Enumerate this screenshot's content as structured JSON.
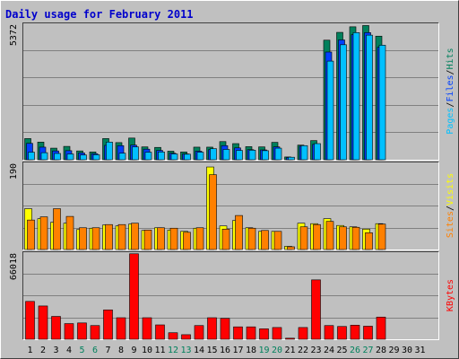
{
  "colors": {
    "background": "#C0C0C0",
    "plot_bg": "#C0C0C0",
    "grid": "#808080",
    "title": "#0000CC",
    "hits": "#00805C",
    "files": "#0040FF",
    "pages": "#00C0FF",
    "visits": "#FFFF00",
    "sites": "#FF8000",
    "kbytes": "#FF0000",
    "weekend_label": "#00805C",
    "weekday_label": "#000000"
  },
  "chart_data": [
    {
      "type": "bar",
      "title": "Daily usage for February 2011",
      "ymax_label": "5372",
      "ylim": [
        0,
        5372
      ],
      "legend_right": [
        {
          "text": "Pages",
          "color": "#00C0FF"
        },
        {
          "text": "/",
          "color": "#000000"
        },
        {
          "text": "Files",
          "color": "#0040FF"
        },
        {
          "text": "/",
          "color": "#000000"
        },
        {
          "text": "Hits",
          "color": "#00805C"
        }
      ],
      "categories": [
        "1",
        "2",
        "3",
        "4",
        "5",
        "6",
        "7",
        "8",
        "9",
        "10",
        "11",
        "12",
        "13",
        "14",
        "15",
        "16",
        "17",
        "18",
        "19",
        "20",
        "21",
        "22",
        "23",
        "24",
        "25",
        "26",
        "27",
        "28",
        "29",
        "30",
        "31"
      ],
      "series": [
        {
          "name": "Hits",
          "values": [
            840,
            700,
            460,
            530,
            350,
            310,
            840,
            680,
            860,
            510,
            490,
            340,
            310,
            500,
            500,
            720,
            640,
            520,
            510,
            690,
            110,
            580,
            760,
            4740,
            5050,
            5270,
            5320,
            4900,
            0,
            0,
            0
          ]
        },
        {
          "name": "Files",
          "values": [
            650,
            500,
            350,
            360,
            270,
            240,
            570,
            560,
            580,
            420,
            370,
            260,
            230,
            340,
            400,
            560,
            470,
            400,
            390,
            510,
            90,
            540,
            610,
            4270,
            4750,
            4960,
            5040,
            4460,
            0,
            0,
            0
          ]
        },
        {
          "name": "Pages",
          "values": [
            300,
            280,
            250,
            230,
            190,
            200,
            700,
            260,
            510,
            300,
            310,
            230,
            220,
            300,
            440,
            410,
            370,
            380,
            360,
            460,
            100,
            560,
            640,
            3910,
            4560,
            5040,
            4940,
            4540,
            0,
            0,
            0
          ]
        }
      ]
    },
    {
      "type": "bar",
      "ymax_label": "190",
      "ylim": [
        0,
        190
      ],
      "legend_right": [
        {
          "text": "Sites",
          "color": "#FF8000"
        },
        {
          "text": "/",
          "color": "#000000"
        },
        {
          "text": "Visits",
          "color": "#FFFF00"
        }
      ],
      "categories": [
        "1",
        "2",
        "3",
        "4",
        "5",
        "6",
        "7",
        "8",
        "9",
        "10",
        "11",
        "12",
        "13",
        "14",
        "15",
        "16",
        "17",
        "18",
        "19",
        "20",
        "21",
        "22",
        "23",
        "24",
        "25",
        "26",
        "27",
        "28",
        "29",
        "30",
        "31"
      ],
      "series": [
        {
          "name": "Visits",
          "values": [
            90,
            68,
            60,
            58,
            44,
            47,
            54,
            52,
            56,
            42,
            48,
            43,
            40,
            47,
            182,
            52,
            64,
            48,
            40,
            40,
            7,
            58,
            57,
            68,
            53,
            50,
            45,
            57,
            0,
            0,
            0
          ]
        },
        {
          "name": "Sites",
          "values": [
            65,
            72,
            90,
            73,
            48,
            48,
            55,
            55,
            58,
            43,
            48,
            47,
            38,
            48,
            165,
            45,
            75,
            47,
            42,
            40,
            6,
            50,
            55,
            62,
            50,
            49,
            37,
            56,
            0,
            0,
            0
          ]
        }
      ]
    },
    {
      "type": "bar",
      "ymax_label": "66018",
      "ylim": [
        0,
        66018
      ],
      "legend_right": [
        {
          "text": "KBytes",
          "color": "#FF0000"
        }
      ],
      "categories": [
        "1",
        "2",
        "3",
        "4",
        "5",
        "6",
        "7",
        "8",
        "9",
        "10",
        "11",
        "12",
        "13",
        "14",
        "15",
        "16",
        "17",
        "18",
        "19",
        "20",
        "21",
        "22",
        "23",
        "24",
        "25",
        "26",
        "27",
        "28",
        "29",
        "30",
        "31"
      ],
      "weekend_days": [
        5,
        6,
        12,
        13,
        19,
        20,
        26,
        27
      ],
      "series": [
        {
          "name": "KBytes",
          "values": [
            29000,
            25500,
            17500,
            12000,
            12500,
            10500,
            22500,
            16500,
            65500,
            16500,
            11000,
            5000,
            3500,
            10500,
            16500,
            16000,
            9500,
            9500,
            8000,
            9000,
            800,
            9000,
            45500,
            10500,
            9800,
            10800,
            10000,
            17000,
            0,
            0,
            0
          ]
        }
      ]
    }
  ]
}
